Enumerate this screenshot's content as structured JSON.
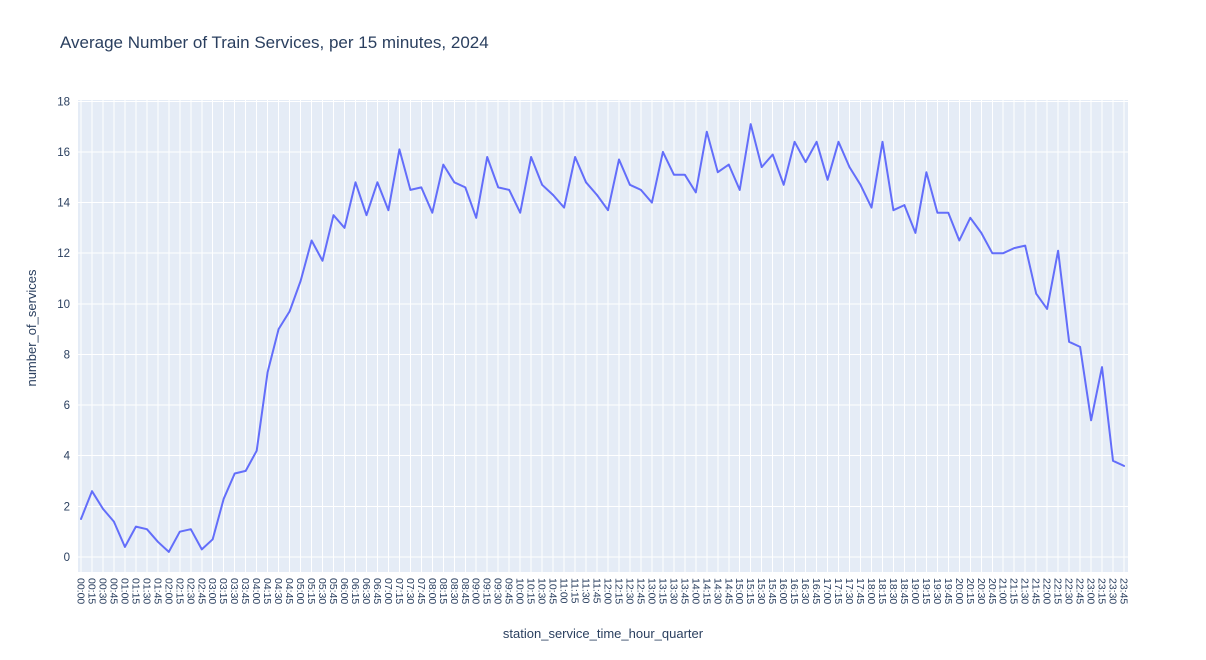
{
  "page": {
    "title": "Average Number of Train Services, per 15 minutes, 2024"
  },
  "chart_data": {
    "type": "line",
    "title": "Average Number of Train Services, per 15 minutes, 2024",
    "xlabel": "station_service_time_hour_quarter",
    "ylabel": "number_of_services",
    "ylim": [
      0,
      18
    ],
    "yticks": [
      0,
      2,
      4,
      6,
      8,
      10,
      12,
      14,
      16,
      18
    ],
    "grid": true,
    "legend": "none",
    "colors": {
      "line": "#636efa",
      "plot_bg": "#e5ecf6",
      "grid": "#ffffff",
      "text": "#2a3f5f",
      "page_bg": "#ffffff"
    },
    "categories": [
      "00:00",
      "00:15",
      "00:30",
      "00:45",
      "01:00",
      "01:15",
      "01:30",
      "01:45",
      "02:00",
      "02:15",
      "02:30",
      "02:45",
      "03:00",
      "03:15",
      "03:30",
      "03:45",
      "04:00",
      "04:15",
      "04:30",
      "04:45",
      "05:00",
      "05:15",
      "05:30",
      "05:45",
      "06:00",
      "06:15",
      "06:30",
      "06:45",
      "07:00",
      "07:15",
      "07:30",
      "07:45",
      "08:00",
      "08:15",
      "08:30",
      "08:45",
      "09:00",
      "09:15",
      "09:30",
      "09:45",
      "10:00",
      "10:15",
      "10:30",
      "10:45",
      "11:00",
      "11:15",
      "11:30",
      "11:45",
      "12:00",
      "12:15",
      "12:30",
      "12:45",
      "13:00",
      "13:15",
      "13:30",
      "13:45",
      "14:00",
      "14:15",
      "14:30",
      "14:45",
      "15:00",
      "15:15",
      "15:30",
      "15:45",
      "16:00",
      "16:15",
      "16:30",
      "16:45",
      "17:00",
      "17:15",
      "17:30",
      "17:45",
      "18:00",
      "18:15",
      "18:30",
      "18:45",
      "19:00",
      "19:15",
      "19:30",
      "19:45",
      "20:00",
      "20:15",
      "20:30",
      "20:45",
      "21:00",
      "21:15",
      "21:30",
      "21:45",
      "22:00",
      "22:15",
      "22:30",
      "22:45",
      "23:00",
      "23:15",
      "23:30",
      "23:45"
    ],
    "values": [
      1.5,
      2.6,
      1.9,
      1.4,
      0.4,
      1.2,
      1.1,
      0.6,
      0.2,
      1.0,
      1.1,
      0.3,
      0.7,
      2.3,
      3.3,
      3.4,
      4.2,
      7.3,
      9.0,
      9.7,
      10.9,
      12.5,
      11.7,
      13.5,
      13.0,
      14.8,
      13.5,
      14.8,
      13.7,
      16.1,
      14.5,
      14.6,
      13.6,
      15.5,
      14.8,
      14.6,
      13.4,
      15.8,
      14.6,
      14.5,
      13.6,
      15.8,
      14.7,
      14.3,
      13.8,
      15.8,
      14.8,
      14.3,
      13.7,
      15.7,
      14.7,
      14.5,
      14.0,
      16.0,
      15.1,
      15.1,
      14.4,
      16.8,
      15.2,
      15.5,
      14.5,
      17.1,
      15.4,
      15.9,
      14.7,
      16.4,
      15.6,
      16.4,
      14.9,
      16.4,
      15.4,
      14.7,
      13.8,
      16.4,
      13.7,
      13.9,
      12.8,
      15.2,
      13.6,
      13.6,
      12.5,
      13.4,
      12.8,
      12.0,
      12.0,
      12.2,
      12.3,
      10.4,
      9.8,
      12.1,
      8.5,
      8.3,
      5.4,
      7.5,
      3.8,
      3.6
    ]
  }
}
